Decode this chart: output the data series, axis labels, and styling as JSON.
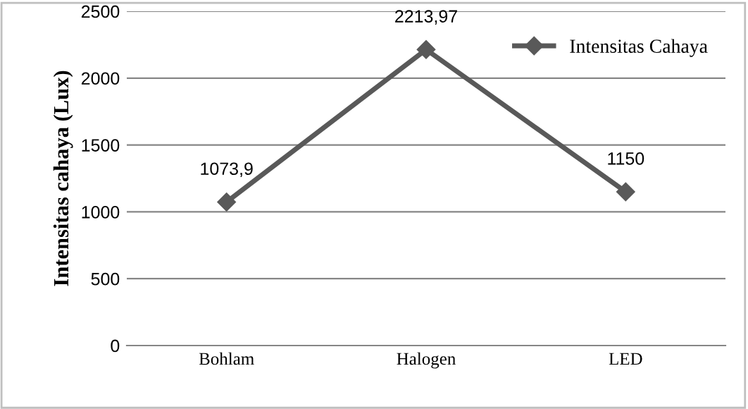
{
  "chart_data": {
    "type": "line",
    "ylabel": "Intensitas cahaya (Lux)",
    "categories": [
      "Bohlam",
      "Halogen",
      "LED"
    ],
    "series": [
      {
        "name": "Intensitas Cahaya",
        "color": "#595959",
        "values": [
          1073.9,
          2213.97,
          1150
        ],
        "value_labels": [
          "1073,9",
          "2213,97",
          "1150"
        ]
      }
    ],
    "ylim": [
      0,
      2500
    ],
    "yticks": [
      0,
      500,
      1000,
      1500,
      2000,
      2500
    ],
    "grid": "y",
    "legend": "top right",
    "marker": "diamond",
    "line_style": "solid"
  }
}
